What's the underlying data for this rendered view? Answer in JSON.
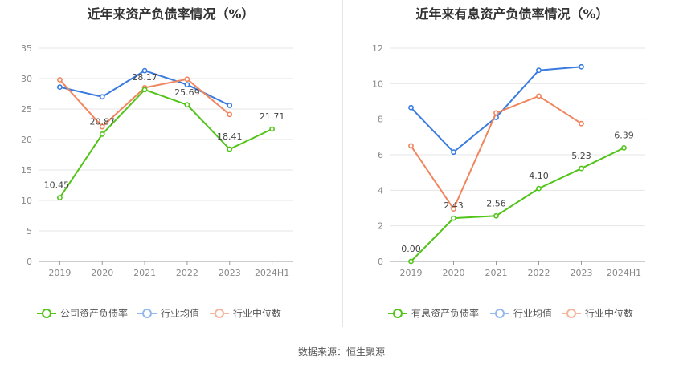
{
  "colors": {
    "green": "#52c41a",
    "blue": "#3a7be0",
    "orange": "#f0855e",
    "blue_light": "#93b8f0",
    "orange_light": "#f5b59c",
    "grid": "#e6e6e6",
    "axis": "#999999",
    "tick_text": "#888888",
    "label_text": "#444444"
  },
  "source_text": "数据来源：恒生聚源",
  "chart_data": [
    {
      "type": "line",
      "title": "近年来资产负债率情况（%）",
      "categories": [
        "2019",
        "2020",
        "2021",
        "2022",
        "2023",
        "2024H1"
      ],
      "ylim": [
        0,
        35
      ],
      "yticks": [
        "0",
        "5",
        "10",
        "15",
        "20",
        "25",
        "30",
        "35"
      ],
      "grid": true,
      "legend_position": "bottom",
      "series": [
        {
          "name": "公司资产负债率",
          "color_key": "green",
          "values": [
            10.45,
            20.87,
            28.17,
            25.69,
            18.41,
            21.71
          ],
          "labels": [
            "10.45",
            "20.87",
            "28.17",
            "25.69",
            "18.41",
            "21.71"
          ]
        },
        {
          "name": "行业均值",
          "color_key": "blue",
          "values": [
            28.6,
            27.0,
            31.3,
            29.0,
            25.6,
            null
          ]
        },
        {
          "name": "行业中位数",
          "color_key": "orange",
          "values": [
            29.8,
            22.1,
            28.5,
            29.9,
            24.1,
            null
          ]
        }
      ]
    },
    {
      "type": "line",
      "title": "近年来有息资产负债率情况（%）",
      "categories": [
        "2019",
        "2020",
        "2021",
        "2022",
        "2023",
        "2024H1"
      ],
      "ylim": [
        0,
        12
      ],
      "yticks": [
        "0",
        "2",
        "4",
        "6",
        "8",
        "10",
        "12"
      ],
      "grid": true,
      "legend_position": "bottom",
      "series": [
        {
          "name": "有息资产负债率",
          "color_key": "green",
          "values": [
            0.0,
            2.43,
            2.56,
            4.1,
            5.23,
            6.39
          ],
          "labels": [
            "0.00",
            "2.43",
            "2.56",
            "4.10",
            "5.23",
            "6.39"
          ]
        },
        {
          "name": "行业均值",
          "color_key": "blue",
          "values": [
            8.65,
            6.15,
            8.1,
            10.75,
            10.95,
            null
          ]
        },
        {
          "name": "行业中位数",
          "color_key": "orange",
          "values": [
            6.5,
            2.95,
            8.35,
            9.3,
            7.75,
            null
          ]
        }
      ]
    }
  ]
}
